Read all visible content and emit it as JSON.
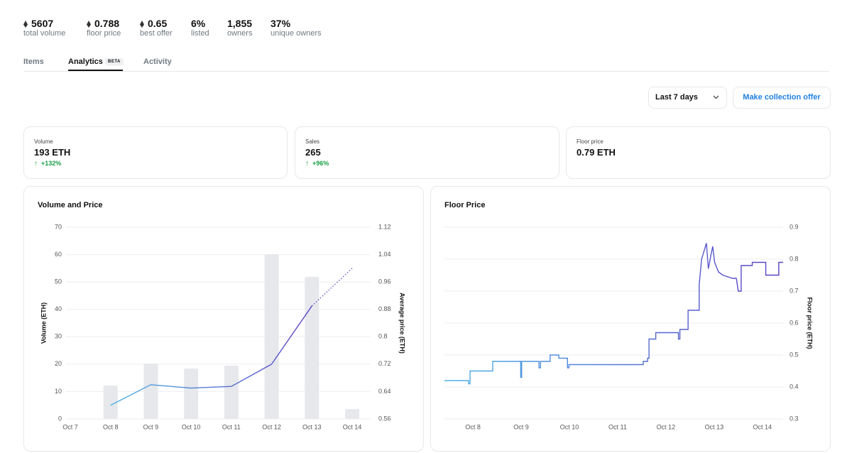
{
  "header": {
    "stats": [
      {
        "value": "5607",
        "label": "total volume"
      },
      {
        "value": "0.788",
        "label": "floor price"
      },
      {
        "value": "0.65",
        "label": "best offer"
      },
      {
        "value": "6%",
        "label": "listed"
      },
      {
        "value": "1,855",
        "label": "owners"
      },
      {
        "value": "37%",
        "label": "unique owners"
      }
    ]
  },
  "tabs": {
    "items": [
      "Items",
      "Analytics",
      "Activity"
    ],
    "badge": "BETA"
  },
  "controls": {
    "range": "Last 7 days",
    "offer_button": "Make collection offer"
  },
  "summary": [
    {
      "label": "Volume",
      "value": "193 ETH",
      "change": "+132%"
    },
    {
      "label": "Sales",
      "value": "265",
      "change": "+96%"
    },
    {
      "label": "Floor price",
      "value": "0.79 ETH"
    }
  ],
  "chart_data": [
    {
      "type": "combo",
      "title": "Volume and Price",
      "y_label": "Volume (ETH)",
      "y2_label": "Average price (ETH)",
      "categories": [
        "Oct 7",
        "Oct 8",
        "Oct 9",
        "Oct 10",
        "Oct 11",
        "Oct 12",
        "Oct 13",
        "Oct 14"
      ],
      "series": [
        {
          "type": "bar",
          "color": "#e6e8eb",
          "values": [
            null,
            12.2,
            20.2,
            18.4,
            19.4,
            60.1,
            51.9,
            3.6
          ]
        },
        {
          "type": "line",
          "axis": "y2",
          "colors": [
            "#4db3e6",
            "#5b3fc4"
          ],
          "dotted_last_segment": true,
          "values": [
            null,
            0.6,
            0.66,
            0.65,
            0.655,
            0.72,
            0.89,
            1.0
          ]
        }
      ],
      "ylim": [
        0,
        70
      ],
      "yticks": [
        0,
        10,
        20,
        30,
        40,
        50,
        60,
        70
      ],
      "y2lim": [
        0.56,
        1.12
      ],
      "y2ticks": [
        0.56,
        0.64,
        0.72,
        0.8,
        0.88,
        0.96,
        1.04,
        1.12
      ],
      "grid": true
    },
    {
      "type": "line",
      "title": "Floor Price",
      "y2_label": "Floor price (ETH)",
      "x": [
        7.41,
        7.91,
        7.91,
        7.94,
        7.94,
        8.41,
        8.41,
        8.99,
        8.99,
        9.01,
        9.01,
        9.37,
        9.37,
        9.4,
        9.4,
        9.6,
        9.6,
        9.78,
        9.78,
        9.96,
        9.96,
        9.99,
        9.99,
        11.53,
        11.53,
        11.62,
        11.62,
        11.65,
        11.65,
        11.79,
        11.79,
        12.26,
        12.26,
        12.29,
        12.29,
        12.46,
        12.46,
        12.69,
        12.69,
        12.74,
        12.84,
        12.88,
        12.93,
        12.97,
        13.01,
        13.09,
        13.18,
        13.38,
        13.46,
        13.5,
        13.56,
        13.56,
        13.79,
        13.79,
        14.07,
        14.07,
        14.34,
        14.34,
        14.43
      ],
      "series": [
        {
          "colors": [
            "#4db3e6",
            "#5b3fc4"
          ],
          "values": [
            0.42,
            0.42,
            0.41,
            0.41,
            0.45,
            0.45,
            0.48,
            0.48,
            0.43,
            0.43,
            0.48,
            0.48,
            0.46,
            0.46,
            0.48,
            0.48,
            0.5,
            0.5,
            0.49,
            0.49,
            0.46,
            0.46,
            0.47,
            0.47,
            0.48,
            0.48,
            0.49,
            0.49,
            0.55,
            0.55,
            0.57,
            0.57,
            0.55,
            0.55,
            0.58,
            0.58,
            0.64,
            0.64,
            0.72,
            0.8,
            0.85,
            0.77,
            0.81,
            0.84,
            0.79,
            0.76,
            0.75,
            0.74,
            0.74,
            0.7,
            0.7,
            0.78,
            0.78,
            0.79,
            0.79,
            0.75,
            0.75,
            0.79,
            0.79
          ]
        }
      ],
      "xlim": [
        7.41,
        14.43
      ],
      "xticks": [
        {
          "value": 8,
          "label": "Oct 8"
        },
        {
          "value": 9,
          "label": "Oct 9"
        },
        {
          "value": 10,
          "label": "Oct 10"
        },
        {
          "value": 11,
          "label": "Oct 11"
        },
        {
          "value": 12,
          "label": "Oct 12"
        },
        {
          "value": 13,
          "label": "Oct 13"
        },
        {
          "value": 14,
          "label": "Oct 14"
        }
      ],
      "ylim": [
        0.3,
        0.9
      ],
      "yticks": [
        0.3,
        0.4,
        0.5,
        0.6,
        0.7,
        0.8,
        0.9
      ],
      "grid": true
    }
  ]
}
